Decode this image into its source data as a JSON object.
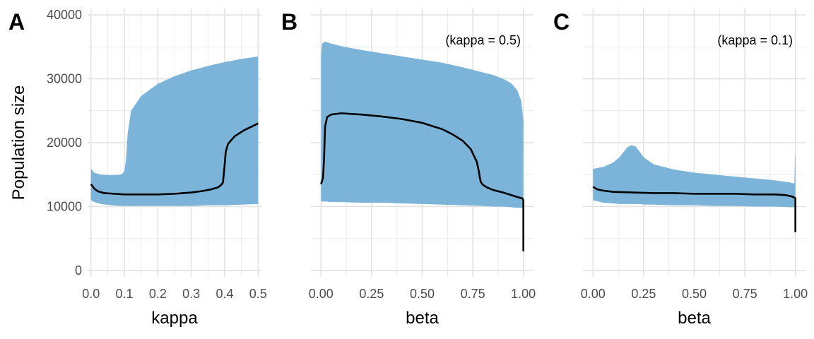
{
  "chart_data": [
    {
      "type": "area",
      "tag": "A",
      "xlabel": "kappa",
      "ylabel": "Population size",
      "annotation": "",
      "xlim": [
        -0.01,
        0.51
      ],
      "ylim": [
        -1000,
        41000
      ],
      "xticks": [
        0.0,
        0.1,
        0.2,
        0.3,
        0.4,
        0.5
      ],
      "xtick_labels": [
        "0.0",
        "0.1",
        "0.2",
        "0.3",
        "0.4",
        "0.5"
      ],
      "yticks": [
        0,
        10000,
        20000,
        30000,
        40000
      ],
      "ytick_labels": [
        "0",
        "10000",
        "20000",
        "30000",
        "40000"
      ],
      "ribbon_color": "#7bb4d8",
      "line_color": "#000000",
      "ribbon": {
        "x": [
          0.0,
          0.01,
          0.03,
          0.06,
          0.09,
          0.1,
          0.105,
          0.11,
          0.12,
          0.15,
          0.2,
          0.25,
          0.3,
          0.35,
          0.4,
          0.45,
          0.5
        ],
        "upper": [
          15900,
          15300,
          15000,
          14900,
          15000,
          15500,
          17500,
          21500,
          25000,
          27300,
          29200,
          30400,
          31300,
          32000,
          32600,
          33100,
          33500
        ],
        "lower": [
          11000,
          10700,
          10400,
          10200,
          10100,
          10100,
          10100,
          10100,
          10100,
          10100,
          10100,
          10100,
          10100,
          10200,
          10200,
          10300,
          10400
        ]
      },
      "line": {
        "x": [
          0.0,
          0.01,
          0.02,
          0.04,
          0.07,
          0.1,
          0.15,
          0.2,
          0.25,
          0.3,
          0.33,
          0.36,
          0.38,
          0.39,
          0.395,
          0.4,
          0.403,
          0.41,
          0.43,
          0.46,
          0.5
        ],
        "y": [
          13500,
          12800,
          12400,
          12100,
          12000,
          11900,
          11900,
          11900,
          12000,
          12200,
          12400,
          12700,
          13000,
          13400,
          13800,
          16500,
          18500,
          19800,
          21000,
          22000,
          23000
        ]
      }
    },
    {
      "type": "area",
      "tag": "B",
      "xlabel": "beta",
      "ylabel": "",
      "annotation": "(kappa = 0.5)",
      "xlim": [
        -0.05,
        1.05
      ],
      "ylim": [
        -1000,
        41000
      ],
      "xticks": [
        0.0,
        0.25,
        0.5,
        0.75,
        1.0
      ],
      "xtick_labels": [
        "0.00",
        "0.25",
        "0.50",
        "0.75",
        "1.00"
      ],
      "yticks": [
        0,
        10000,
        20000,
        30000,
        40000
      ],
      "ytick_labels": [],
      "ribbon_color": "#7bb4d8",
      "line_color": "#000000",
      "ribbon": {
        "x": [
          0.0,
          0.005,
          0.02,
          0.05,
          0.1,
          0.2,
          0.3,
          0.4,
          0.5,
          0.6,
          0.7,
          0.8,
          0.85,
          0.9,
          0.94,
          0.97,
          0.99,
          1.0
        ],
        "upper": [
          33500,
          35500,
          35800,
          35500,
          35100,
          34500,
          34000,
          33500,
          33000,
          32500,
          31800,
          31000,
          30600,
          30000,
          29300,
          28200,
          26500,
          23500
        ],
        "lower": [
          10800,
          10800,
          10800,
          10700,
          10700,
          10600,
          10600,
          10500,
          10400,
          10300,
          10200,
          10100,
          10000,
          10000,
          9900,
          9800,
          9800,
          9800
        ]
      },
      "line": {
        "x": [
          0.0,
          0.01,
          0.015,
          0.02,
          0.03,
          0.05,
          0.1,
          0.2,
          0.3,
          0.4,
          0.5,
          0.6,
          0.65,
          0.7,
          0.74,
          0.77,
          0.78,
          0.785,
          0.79,
          0.8,
          0.82,
          0.85,
          0.9,
          0.95,
          0.98,
          0.995,
          1.0,
          1.0
        ],
        "y": [
          13500,
          14500,
          17500,
          22500,
          24000,
          24400,
          24600,
          24400,
          24100,
          23700,
          23100,
          22100,
          21300,
          20300,
          19000,
          17000,
          15500,
          14500,
          13800,
          13400,
          13000,
          12600,
          12200,
          11700,
          11400,
          11300,
          11000,
          3000
        ]
      }
    },
    {
      "type": "area",
      "tag": "C",
      "xlabel": "beta",
      "ylabel": "",
      "annotation": "(kappa = 0.1)",
      "xlim": [
        -0.05,
        1.05
      ],
      "ylim": [
        -1000,
        41000
      ],
      "xticks": [
        0.0,
        0.25,
        0.5,
        0.75,
        1.0
      ],
      "xtick_labels": [
        "0.00",
        "0.25",
        "0.50",
        "0.75",
        "1.00"
      ],
      "yticks": [
        0,
        10000,
        20000,
        30000,
        40000
      ],
      "ytick_labels": [],
      "ribbon_color": "#7bb4d8",
      "line_color": "#000000",
      "ribbon": {
        "x": [
          0.0,
          0.05,
          0.1,
          0.13,
          0.15,
          0.17,
          0.19,
          0.21,
          0.23,
          0.25,
          0.3,
          0.4,
          0.5,
          0.6,
          0.7,
          0.8,
          0.9,
          0.97,
          0.995,
          0.998,
          1.0
        ],
        "upper": [
          15900,
          16200,
          16900,
          17700,
          18500,
          19300,
          19600,
          19400,
          18600,
          17700,
          16600,
          15800,
          15300,
          15000,
          14700,
          14400,
          14100,
          13800,
          13600,
          18000,
          18000
        ],
        "lower": [
          11000,
          10600,
          10500,
          10400,
          10400,
          10400,
          10400,
          10400,
          10400,
          10300,
          10300,
          10200,
          10200,
          10100,
          10100,
          10000,
          10000,
          9900,
          9900,
          9900,
          9900
        ]
      },
      "line": {
        "x": [
          0.0,
          0.02,
          0.05,
          0.1,
          0.2,
          0.3,
          0.4,
          0.5,
          0.6,
          0.7,
          0.8,
          0.9,
          0.95,
          0.98,
          0.995,
          1.0,
          1.0
        ],
        "y": [
          13100,
          12700,
          12500,
          12300,
          12200,
          12100,
          12100,
          12000,
          12000,
          12000,
          11900,
          11900,
          11800,
          11600,
          11400,
          11300,
          6000
        ]
      }
    }
  ]
}
